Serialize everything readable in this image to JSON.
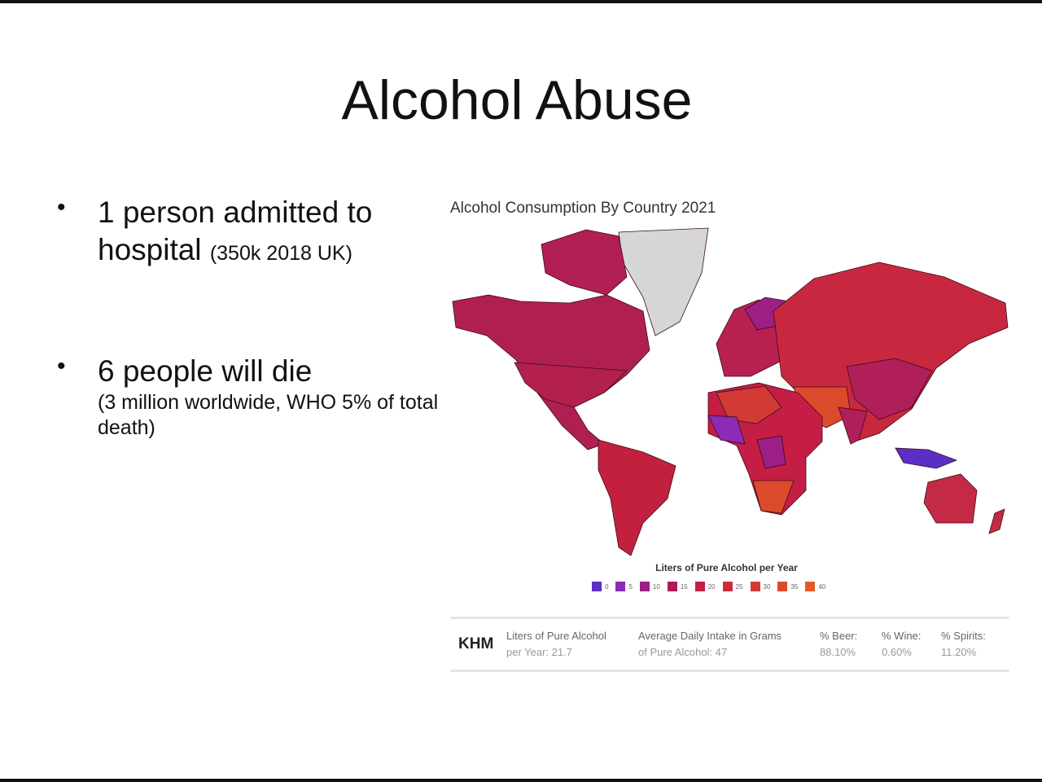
{
  "slide": {
    "title": "Alcohol Abuse",
    "bullets": [
      {
        "main": "1 person admitted to hospital",
        "note": "(350k 2018 UK)"
      },
      {
        "main": "6 people will die",
        "note": "(3 million worldwide, WHO 5% of total death)"
      }
    ]
  },
  "map": {
    "title": "Alcohol Consumption By Country 2021",
    "legend_title": "Liters of Pure Alcohol per Year",
    "legend": [
      {
        "label": "0",
        "color": "#5b2fc4"
      },
      {
        "label": "5",
        "color": "#8b2bb8"
      },
      {
        "label": "10",
        "color": "#9c1f86"
      },
      {
        "label": "15",
        "color": "#b01a5a"
      },
      {
        "label": "20",
        "color": "#c41e45"
      },
      {
        "label": "25",
        "color": "#cc2c3a"
      },
      {
        "label": "30",
        "color": "#d23a35"
      },
      {
        "label": "35",
        "color": "#dc4a2c"
      },
      {
        "label": "40",
        "color": "#e25a24"
      }
    ],
    "info": {
      "code": "KHM",
      "liters_label": "Liters of Pure Alcohol",
      "liters_value": "per Year: 21.7",
      "intake_label": "Average Daily Intake in Grams",
      "intake_value": "of Pure Alcohol: 47",
      "beer_label": "% Beer:",
      "beer_value": "88.10%",
      "wine_label": "% Wine:",
      "wine_value": "0.60%",
      "spirits_label": "% Spirits:",
      "spirits_value": "11.20%"
    }
  }
}
